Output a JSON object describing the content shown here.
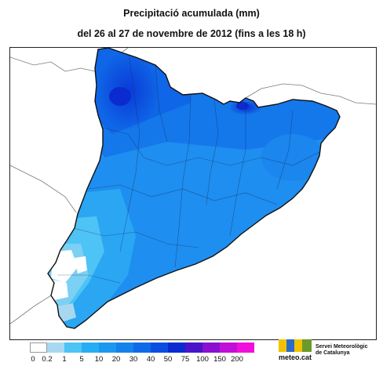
{
  "title": "Precipitació acumulada (mm)",
  "subtitle": "del 26 al 27 de novembre de 2012 (fins a les 18 h)",
  "legend": {
    "ticks": [
      "0",
      "0.2",
      "1",
      "5",
      "10",
      "20",
      "30",
      "40",
      "50",
      "75",
      "100",
      "150",
      "200"
    ],
    "colors": [
      "#ffffff",
      "#a8d8f0",
      "#4ec3f5",
      "#26aef5",
      "#1a98f0",
      "#1482eb",
      "#0f6ae8",
      "#0a4fe0",
      "#0a2bd0",
      "#4a14c8",
      "#8a0fd0",
      "#c20fd8",
      "#f20fdc"
    ]
  },
  "logo": {
    "domain": "meteo.cat",
    "org_line1": "Servei Meteorològic",
    "org_line2": "de Catalunya"
  }
}
